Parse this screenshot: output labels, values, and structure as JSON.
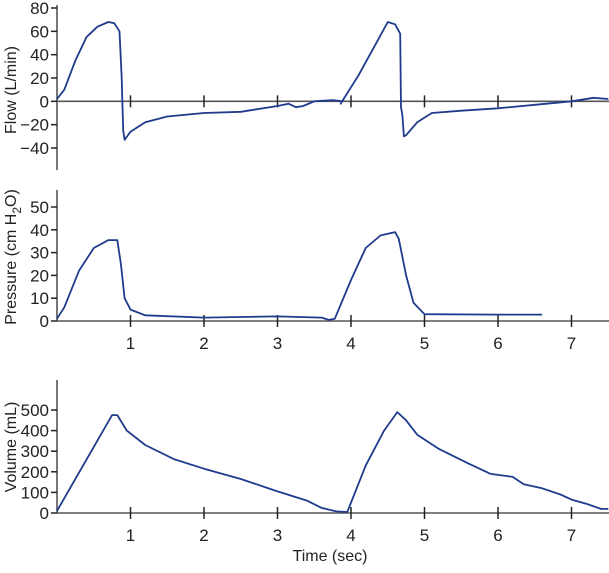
{
  "chart_data": [
    {
      "type": "line",
      "title": "",
      "ylabel": "Flow (L/min)",
      "xlabel": "",
      "xlim": [
        0,
        7.5
      ],
      "ylim": [
        -60,
        80
      ],
      "yticks": [
        80,
        60,
        40,
        20,
        0,
        -20,
        -40
      ],
      "ytick_labels": [
        "80",
        "60",
        "40",
        "20",
        "0",
        "−20",
        "−40"
      ],
      "xticks": [
        1,
        2,
        3,
        4,
        5,
        6,
        7
      ],
      "x_axis_at": 0,
      "series": [
        {
          "name": "Flow",
          "color": "#1f3b8c",
          "points": [
            [
              0,
              2
            ],
            [
              0.1,
              10
            ],
            [
              0.25,
              35
            ],
            [
              0.4,
              55
            ],
            [
              0.55,
              64
            ],
            [
              0.7,
              68
            ],
            [
              0.78,
              67
            ],
            [
              0.85,
              60
            ],
            [
              0.88,
              20
            ],
            [
              0.9,
              -25
            ],
            [
              0.92,
              -33
            ],
            [
              1.0,
              -26
            ],
            [
              1.2,
              -18
            ],
            [
              1.5,
              -13
            ],
            [
              2.0,
              -10
            ],
            [
              2.5,
              -9
            ],
            [
              3.0,
              -4
            ],
            [
              3.15,
              -2
            ],
            [
              3.25,
              -5
            ],
            [
              3.35,
              -4
            ],
            [
              3.5,
              0
            ],
            [
              3.75,
              1
            ],
            [
              3.88,
              0
            ],
            [
              3.86,
              -2
            ],
            [
              3.9,
              2
            ],
            [
              4.1,
              22
            ],
            [
              4.3,
              45
            ],
            [
              4.5,
              68
            ],
            [
              4.6,
              66
            ],
            [
              4.67,
              58
            ],
            [
              4.68,
              -5
            ],
            [
              4.7,
              -12
            ],
            [
              4.72,
              -30
            ],
            [
              4.75,
              -29
            ],
            [
              4.9,
              -18
            ],
            [
              5.1,
              -10
            ],
            [
              5.5,
              -8
            ],
            [
              6.0,
              -6
            ],
            [
              6.5,
              -3
            ],
            [
              7.0,
              0
            ],
            [
              7.3,
              3
            ],
            [
              7.5,
              2
            ]
          ]
        }
      ]
    },
    {
      "type": "line",
      "title": "",
      "ylabel": "Pressure (cm H2O)",
      "ylabel_parts": [
        "Pressure (cm H",
        "2",
        "O)"
      ],
      "xlabel": "",
      "xlim": [
        0,
        7.5
      ],
      "ylim": [
        0,
        57
      ],
      "yticks": [
        0,
        10,
        20,
        30,
        40,
        50
      ],
      "ytick_labels": [
        "0",
        "10",
        "20",
        "30",
        "40",
        "50"
      ],
      "xticks": [
        1,
        2,
        3,
        4,
        5,
        6,
        7
      ],
      "xtick_labels": [
        "1",
        "2",
        "3",
        "4",
        "5",
        "6",
        "7"
      ],
      "series": [
        {
          "name": "Pressure",
          "color": "#1f3b8c",
          "points": [
            [
              0,
              1
            ],
            [
              0.1,
              6
            ],
            [
              0.3,
              22
            ],
            [
              0.5,
              32
            ],
            [
              0.7,
              35.5
            ],
            [
              0.82,
              35.5
            ],
            [
              0.87,
              25
            ],
            [
              0.92,
              10
            ],
            [
              1,
              5
            ],
            [
              1.2,
              2.5
            ],
            [
              2,
              1.5
            ],
            [
              3,
              2
            ],
            [
              3.6,
              1.5
            ],
            [
              3.7,
              0.5
            ],
            [
              3.78,
              1
            ],
            [
              4.0,
              18
            ],
            [
              4.2,
              32
            ],
            [
              4.4,
              37.5
            ],
            [
              4.6,
              39
            ],
            [
              4.65,
              36
            ],
            [
              4.75,
              20
            ],
            [
              4.85,
              8
            ],
            [
              5,
              3
            ],
            [
              6,
              2.8
            ],
            [
              6.6,
              2.8
            ]
          ]
        }
      ]
    },
    {
      "type": "line",
      "title": "",
      "ylabel": "Volume (mL)",
      "xlabel": "Time (sec)",
      "xlim": [
        0,
        7.5
      ],
      "ylim": [
        0,
        650
      ],
      "yticks": [
        0,
        100,
        200,
        300,
        400,
        500
      ],
      "ytick_labels": [
        "0",
        "100",
        "200",
        "300",
        "400",
        "500"
      ],
      "xticks": [
        1,
        2,
        3,
        4,
        5,
        6,
        7
      ],
      "xtick_labels": [
        "1",
        "2",
        "3",
        "4",
        "5",
        "6",
        "7"
      ],
      "series": [
        {
          "name": "Volume",
          "color": "#1f3b8c",
          "points": [
            [
              0,
              10
            ],
            [
              0.75,
              475
            ],
            [
              0.82,
              475
            ],
            [
              0.95,
              400
            ],
            [
              1.2,
              330
            ],
            [
              1.6,
              260
            ],
            [
              2,
              215
            ],
            [
              2.5,
              165
            ],
            [
              3,
              105
            ],
            [
              3.4,
              60
            ],
            [
              3.6,
              25
            ],
            [
              3.8,
              8
            ],
            [
              3.95,
              5
            ],
            [
              4.2,
              230
            ],
            [
              4.45,
              400
            ],
            [
              4.63,
              490
            ],
            [
              4.75,
              450
            ],
            [
              4.9,
              380
            ],
            [
              5.2,
              310
            ],
            [
              5.6,
              240
            ],
            [
              5.9,
              190
            ],
            [
              6.2,
              175
            ],
            [
              6.35,
              140
            ],
            [
              6.6,
              120
            ],
            [
              6.85,
              90
            ],
            [
              7.0,
              65
            ],
            [
              7.2,
              45
            ],
            [
              7.4,
              20
            ],
            [
              7.5,
              20
            ]
          ]
        }
      ]
    }
  ]
}
